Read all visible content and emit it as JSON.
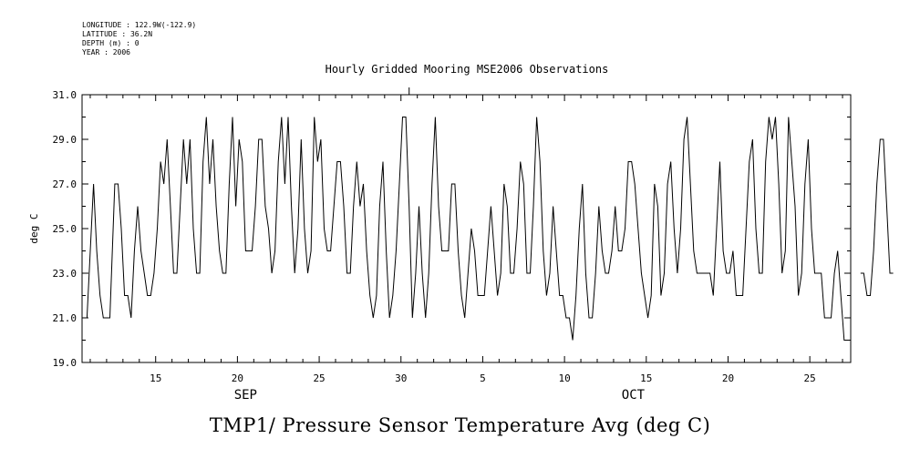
{
  "meta": {
    "longitude": "LONGITUDE : 122.9W(-122.9)",
    "latitude": "LATITUDE : 36.2N",
    "depth": "DEPTH (m) : 0",
    "year": "YEAR : 2006"
  },
  "caption": "TMP1/ Pressure Sensor Temperature Avg (deg C)",
  "chart_data": {
    "type": "line",
    "title": "Hourly Gridded Mooring MSE2006 Observations",
    "xlabel": "",
    "ylabel": "deg C",
    "ylim": [
      19.0,
      31.0
    ],
    "xlim": [
      10.5,
      57.5
    ],
    "x_units": "day index (Sep 1 = 1, Oct 1 = 31)",
    "yticks": [
      19.0,
      21.0,
      23.0,
      25.0,
      27.0,
      29.0,
      31.0
    ],
    "ytick_labels": [
      "19.0",
      "21.0",
      "23.0",
      "25.0",
      "27.0",
      "29.0",
      "31.0"
    ],
    "xticks": [
      15,
      20,
      25,
      30,
      35,
      40,
      45,
      50,
      55
    ],
    "xtick_labels": [
      "15",
      "20",
      "25",
      "30",
      "5",
      "10",
      "15",
      "20",
      "25"
    ],
    "month_labels": [
      {
        "label": "SEP",
        "x": 20.5
      },
      {
        "label": "OCT",
        "x": 44.2
      }
    ],
    "series": [
      {
        "name": "TMP1",
        "segments": [
          [
            [
              10.5,
              21
            ],
            [
              10.8,
              21
            ],
            [
              11.0,
              24
            ],
            [
              11.2,
              27
            ],
            [
              11.4,
              24
            ],
            [
              11.6,
              22
            ],
            [
              11.8,
              21
            ],
            [
              12.0,
              21
            ],
            [
              12.2,
              21
            ],
            [
              12.5,
              27
            ],
            [
              12.7,
              27
            ],
            [
              12.9,
              25
            ],
            [
              13.1,
              22
            ],
            [
              13.3,
              22
            ],
            [
              13.5,
              21
            ],
            [
              13.7,
              24
            ],
            [
              13.9,
              26
            ],
            [
              14.1,
              24
            ],
            [
              14.3,
              23
            ],
            [
              14.5,
              22
            ],
            [
              14.7,
              22
            ],
            [
              14.9,
              23
            ],
            [
              15.1,
              25
            ],
            [
              15.3,
              28
            ],
            [
              15.5,
              27
            ],
            [
              15.7,
              29
            ],
            [
              15.9,
              26
            ],
            [
              16.1,
              23
            ],
            [
              16.3,
              23
            ],
            [
              16.5,
              26
            ],
            [
              16.7,
              29
            ],
            [
              16.9,
              27
            ],
            [
              17.1,
              29
            ],
            [
              17.3,
              25
            ],
            [
              17.5,
              23
            ],
            [
              17.7,
              23
            ],
            [
              17.9,
              28
            ],
            [
              18.1,
              30
            ],
            [
              18.3,
              27
            ],
            [
              18.5,
              29
            ],
            [
              18.7,
              26
            ],
            [
              18.9,
              24
            ],
            [
              19.1,
              23
            ],
            [
              19.3,
              23
            ],
            [
              19.5,
              27
            ],
            [
              19.7,
              30
            ],
            [
              19.9,
              26
            ],
            [
              20.1,
              29
            ],
            [
              20.3,
              28
            ],
            [
              20.5,
              24
            ],
            [
              20.7,
              24
            ],
            [
              20.9,
              24
            ],
            [
              21.1,
              26
            ],
            [
              21.3,
              29
            ],
            [
              21.5,
              29
            ],
            [
              21.7,
              26
            ],
            [
              21.9,
              25
            ],
            [
              22.1,
              23
            ],
            [
              22.3,
              24
            ],
            [
              22.5,
              28
            ],
            [
              22.7,
              30
            ],
            [
              22.9,
              27
            ],
            [
              23.1,
              30
            ],
            [
              23.3,
              26
            ],
            [
              23.5,
              23
            ],
            [
              23.7,
              25
            ],
            [
              23.9,
              29
            ],
            [
              24.1,
              25
            ],
            [
              24.3,
              23
            ],
            [
              24.5,
              24
            ],
            [
              24.7,
              30
            ],
            [
              24.9,
              28
            ],
            [
              25.1,
              29
            ],
            [
              25.3,
              25
            ],
            [
              25.5,
              24
            ],
            [
              25.7,
              24
            ],
            [
              25.9,
              26
            ],
            [
              26.1,
              28
            ],
            [
              26.3,
              28
            ],
            [
              26.5,
              26
            ],
            [
              26.7,
              23
            ],
            [
              26.9,
              23
            ],
            [
              27.1,
              26
            ],
            [
              27.3,
              28
            ],
            [
              27.5,
              26
            ],
            [
              27.7,
              27
            ],
            [
              27.9,
              24
            ],
            [
              28.1,
              22
            ],
            [
              28.3,
              21
            ],
            [
              28.5,
              22
            ],
            [
              28.7,
              26
            ],
            [
              28.9,
              28
            ],
            [
              29.1,
              24
            ],
            [
              29.3,
              21
            ],
            [
              29.5,
              22
            ],
            [
              29.7,
              24
            ],
            [
              29.9,
              27
            ],
            [
              30.1,
              30
            ],
            [
              30.3,
              30
            ],
            [
              30.5,
              26
            ],
            [
              30.7,
              21
            ],
            [
              30.9,
              23
            ],
            [
              31.1,
              26
            ],
            [
              31.3,
              23
            ],
            [
              31.5,
              21
            ],
            [
              31.7,
              23
            ],
            [
              31.9,
              27
            ],
            [
              32.1,
              30
            ],
            [
              32.3,
              26
            ],
            [
              32.5,
              24
            ],
            [
              32.7,
              24
            ],
            [
              32.9,
              24
            ],
            [
              33.1,
              27
            ],
            [
              33.3,
              27
            ],
            [
              33.5,
              24
            ],
            [
              33.7,
              22
            ],
            [
              33.9,
              21
            ],
            [
              34.1,
              23
            ],
            [
              34.3,
              25
            ],
            [
              34.5,
              24
            ],
            [
              34.7,
              22
            ],
            [
              34.9,
              22
            ],
            [
              35.1,
              22
            ],
            [
              35.3,
              24
            ],
            [
              35.5,
              26
            ],
            [
              35.7,
              24
            ],
            [
              35.9,
              22
            ],
            [
              36.1,
              23
            ],
            [
              36.3,
              27
            ],
            [
              36.5,
              26
            ],
            [
              36.7,
              23
            ],
            [
              36.9,
              23
            ],
            [
              37.1,
              25
            ],
            [
              37.3,
              28
            ],
            [
              37.5,
              27
            ],
            [
              37.7,
              23
            ],
            [
              37.9,
              23
            ],
            [
              38.1,
              26
            ],
            [
              38.3,
              30
            ],
            [
              38.5,
              28
            ],
            [
              38.7,
              24
            ],
            [
              38.9,
              22
            ],
            [
              39.1,
              23
            ],
            [
              39.3,
              26
            ],
            [
              39.5,
              24
            ],
            [
              39.7,
              22
            ],
            [
              39.9,
              22
            ],
            [
              40.1,
              21
            ],
            [
              40.3,
              21
            ],
            [
              40.5,
              20
            ],
            [
              40.7,
              22
            ],
            [
              40.9,
              25
            ],
            [
              41.1,
              27
            ],
            [
              41.3,
              23
            ],
            [
              41.5,
              21
            ],
            [
              41.7,
              21
            ],
            [
              41.9,
              23
            ],
            [
              42.1,
              26
            ],
            [
              42.3,
              24
            ],
            [
              42.5,
              23
            ],
            [
              42.7,
              23
            ],
            [
              42.9,
              24
            ],
            [
              43.1,
              26
            ],
            [
              43.3,
              24
            ],
            [
              43.5,
              24
            ],
            [
              43.7,
              25
            ],
            [
              43.9,
              28
            ],
            [
              44.1,
              28
            ],
            [
              44.3,
              27
            ],
            [
              44.5,
              25
            ],
            [
              44.7,
              23
            ],
            [
              44.9,
              22
            ],
            [
              45.1,
              21
            ],
            [
              45.3,
              22
            ],
            [
              45.5,
              27
            ],
            [
              45.7,
              26
            ],
            [
              45.9,
              22
            ],
            [
              46.1,
              23
            ],
            [
              46.3,
              27
            ],
            [
              46.5,
              28
            ],
            [
              46.7,
              25
            ],
            [
              46.9,
              23
            ],
            [
              47.1,
              25
            ],
            [
              47.3,
              29
            ],
            [
              47.5,
              30
            ],
            [
              47.7,
              27
            ],
            [
              47.9,
              24
            ],
            [
              48.1,
              23
            ],
            [
              48.3,
              23
            ],
            [
              48.5,
              23
            ],
            [
              48.7,
              23
            ],
            [
              48.9,
              23
            ],
            [
              49.1,
              22
            ],
            [
              49.3,
              25
            ],
            [
              49.5,
              28
            ],
            [
              49.7,
              24
            ],
            [
              49.9,
              23
            ],
            [
              50.1,
              23
            ],
            [
              50.3,
              24
            ],
            [
              50.5,
              22
            ],
            [
              50.7,
              22
            ],
            [
              50.9,
              22
            ],
            [
              51.1,
              25
            ],
            [
              51.3,
              28
            ],
            [
              51.5,
              29
            ],
            [
              51.7,
              25
            ],
            [
              51.9,
              23
            ],
            [
              52.1,
              23
            ],
            [
              52.3,
              28
            ],
            [
              52.5,
              30
            ],
            [
              52.7,
              29
            ],
            [
              52.9,
              30
            ],
            [
              53.1,
              27
            ],
            [
              53.3,
              23
            ],
            [
              53.5,
              24
            ],
            [
              53.7,
              30
            ],
            [
              53.9,
              28
            ],
            [
              54.1,
              26
            ],
            [
              54.3,
              22
            ],
            [
              54.5,
              23
            ],
            [
              54.7,
              27
            ],
            [
              54.9,
              29
            ],
            [
              55.1,
              25
            ],
            [
              55.3,
              23
            ],
            [
              55.5,
              23
            ],
            [
              55.7,
              23
            ],
            [
              55.9,
              21
            ],
            [
              56.1,
              21
            ],
            [
              56.3,
              21
            ],
            [
              56.5,
              23
            ],
            [
              56.7,
              24
            ],
            [
              56.9,
              22
            ],
            [
              57.1,
              20
            ],
            [
              57.3,
              20
            ]
          ],
          [
            [
              58.1,
              23
            ],
            [
              58.3,
              23
            ],
            [
              58.5,
              22
            ],
            [
              58.7,
              22
            ],
            [
              58.9,
              24
            ],
            [
              59.1,
              27
            ],
            [
              59.3,
              29
            ],
            [
              59.5,
              29
            ],
            [
              59.7,
              26
            ],
            [
              59.9,
              23
            ],
            [
              60.1,
              23
            ]
          ]
        ]
      }
    ]
  }
}
